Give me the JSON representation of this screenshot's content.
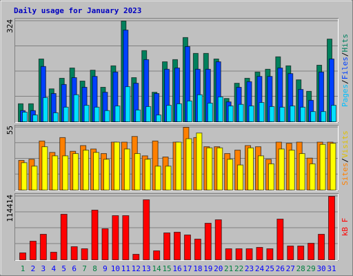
{
  "chart_data": {
    "type": "bar",
    "title": "Daily usage for January 2023",
    "categories": [
      "1",
      "2",
      "3",
      "4",
      "5",
      "6",
      "7",
      "8",
      "9",
      "10",
      "11",
      "12",
      "13",
      "14",
      "15",
      "16",
      "17",
      "18",
      "19",
      "20",
      "21",
      "22",
      "23",
      "24",
      "25",
      "26",
      "27",
      "28",
      "29",
      "30",
      "31"
    ],
    "category_colors": [
      "#008040",
      "#0000ff",
      "#0000ff",
      "#0000ff",
      "#0000ff",
      "#0000ff",
      "#008040",
      "#008040",
      "#0000ff",
      "#0000ff",
      "#0000ff",
      "#0000ff",
      "#0000ff",
      "#008040",
      "#008040",
      "#0000ff",
      "#0000ff",
      "#0000ff",
      "#0000ff",
      "#0000ff",
      "#008040",
      "#008040",
      "#0000ff",
      "#0000ff",
      "#0000ff",
      "#0000ff",
      "#0000ff",
      "#008040",
      "#008040",
      "#0000ff",
      "#0000ff"
    ],
    "grid": true,
    "panels": [
      {
        "ylim": [
          0,
          324
        ],
        "yticks": [
          324
        ],
        "right_label": [
          {
            "text": "Pages",
            "color": "#00c0ff"
          },
          {
            "text": "/",
            "color": "#000000"
          },
          {
            "text": "Files",
            "color": "#0040ff"
          },
          {
            "text": "/",
            "color": "#000000"
          },
          {
            "text": "Hits",
            "color": "#008060"
          }
        ],
        "series": [
          {
            "name": "Hits",
            "color": "#00805c",
            "values": [
              58,
              58,
              202,
              106,
              140,
              173,
              131,
              166,
              111,
              180,
              324,
              142,
              229,
              95,
              193,
              200,
              271,
              220,
              220,
              202,
              75,
              124,
              140,
              160,
              169,
              209,
              180,
              135,
              98,
              182,
              266
            ]
          },
          {
            "name": "Files",
            "color": "#0040ff",
            "values": [
              36,
              36,
              178,
              91,
              120,
              142,
              111,
              146,
              95,
              160,
              295,
              124,
              200,
              91,
              169,
              173,
              242,
              169,
              169,
              193,
              64,
              111,
              129,
              146,
              146,
              173,
              155,
              104,
              69,
              160,
              202
            ]
          },
          {
            "name": "Pages",
            "color": "#00e0ff",
            "values": [
              31,
              22,
              78,
              29,
              47,
              87,
              53,
              47,
              36,
              51,
              113,
              38,
              49,
              22,
              53,
              58,
              67,
              87,
              60,
              80,
              51,
              56,
              51,
              62,
              49,
              47,
              51,
              47,
              33,
              33,
              53
            ]
          }
        ]
      },
      {
        "ylim": [
          0,
          55
        ],
        "yticks": [
          55
        ],
        "right_label": [
          {
            "text": "Sites",
            "color": "#ff8000"
          },
          {
            "text": "/",
            "color": "#000000"
          },
          {
            "text": "Visits",
            "color": "#e0c000"
          }
        ],
        "series": [
          {
            "name": "Visits",
            "color": "#ff8000",
            "values": [
              26,
              27,
              43,
              33,
              46,
              34,
              39,
              36,
              32,
              42,
              42,
              47,
              30,
              43,
              29,
              42,
              55,
              46,
              38,
              38,
              32,
              35,
              39,
              38,
              27,
              42,
              41,
              42,
              28,
              42,
              42
            ]
          },
          {
            "name": "Sites",
            "color": "#ffff00",
            "values": [
              24,
              21,
              38,
              30,
              30,
              32,
              35,
              33,
              27,
              42,
              36,
              32,
              27,
              21,
              21,
              42,
              45,
              50,
              37,
              37,
              27,
              22,
              37,
              30,
              23,
              36,
              35,
              32,
              23,
              40,
              41
            ]
          }
        ]
      },
      {
        "ylim": [
          0,
          114414
        ],
        "yticks": [
          114414
        ],
        "right_label": [
          {
            "text": "kB F",
            "color": "#ff0000"
          }
        ],
        "series": [
          {
            "name": "kB F",
            "color": "#ff0000",
            "values": [
              12436,
              33579,
              46015,
              13680,
              82080,
              23629,
              19898,
              89541,
              55964,
              79592,
              79592,
              9949,
              108196,
              16167,
              48502,
              49745,
              44771,
              37309,
              65912,
              72131,
              19898,
              19898,
              19898,
              22385,
              19898,
              73374,
              24873,
              24873,
              29847,
              46015,
              114414
            ]
          }
        ]
      }
    ]
  }
}
